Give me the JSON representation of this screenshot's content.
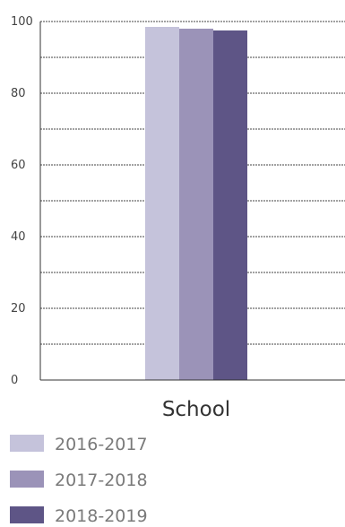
{
  "chart_data": {
    "type": "bar",
    "categories": [
      "School"
    ],
    "series": [
      {
        "name": "2016-2017",
        "values": [
          98.5
        ],
        "color": "#c5c3db"
      },
      {
        "name": "2017-2018",
        "values": [
          98
        ],
        "color": "#9b93b8"
      },
      {
        "name": "2018-2019",
        "values": [
          97.5
        ],
        "color": "#5e5586"
      }
    ],
    "title": "",
    "xlabel": "",
    "ylabel": "",
    "ylim": [
      0,
      100
    ],
    "y_ticks": [
      0,
      20,
      40,
      60,
      80,
      100
    ],
    "grid": true,
    "legend_position": "bottom"
  }
}
